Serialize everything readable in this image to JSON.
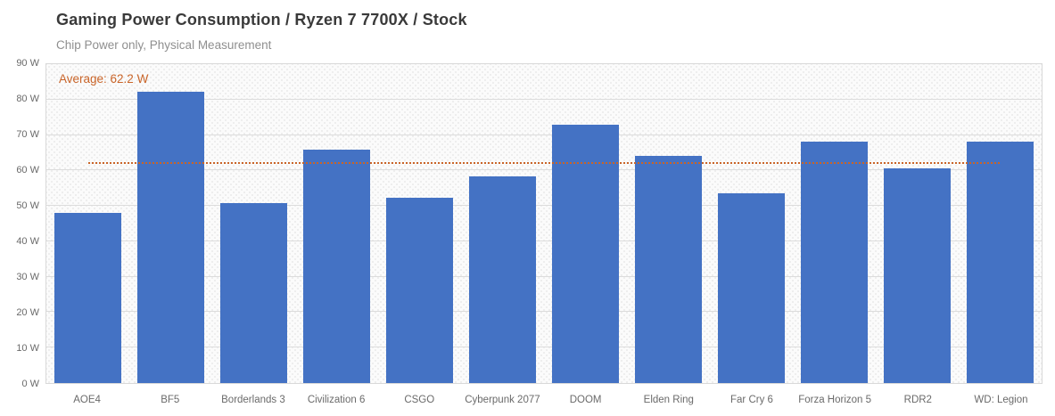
{
  "header": {
    "title": "Gaming Power Consumption / Ryzen 7 7700X / Stock",
    "subtitle": "Chip Power only, Physical Measurement"
  },
  "annotation": {
    "average_label": "Average: 62.2 W",
    "average_value": 62.2
  },
  "colors": {
    "bar": "#4472C4",
    "average": "#c96428",
    "gridline": "#dcdcdc",
    "plot_border": "#d9d9d9",
    "title_text": "#3a3a3a",
    "subtitle_text": "#8f8f8f",
    "axis_text": "#6a6a6a"
  },
  "chart_data": {
    "type": "bar",
    "title": "Gaming Power Consumption / Ryzen 7 7700X / Stock",
    "subtitle": "Chip Power only, Physical Measurement",
    "categories": [
      "AOE4",
      "BF5",
      "Borderlands 3",
      "Civilization 6",
      "CSGO",
      "Cyberpunk 2077",
      "DOOM",
      "Elden Ring",
      "Far Cry 6",
      "Forza Horizon 5",
      "RDR2",
      "WD: Legion"
    ],
    "values": [
      47.9,
      82.3,
      50.8,
      65.9,
      52.4,
      58.4,
      72.9,
      64.0,
      53.5,
      68.2,
      60.6,
      68.2
    ],
    "unit": "W",
    "average": 62.2,
    "average_line": "dotted",
    "xlabel": "",
    "ylabel": "",
    "ylim": [
      0,
      90
    ],
    "ytick_step": 10,
    "ytick_suffix": " W",
    "grid": true,
    "legend": "none"
  }
}
